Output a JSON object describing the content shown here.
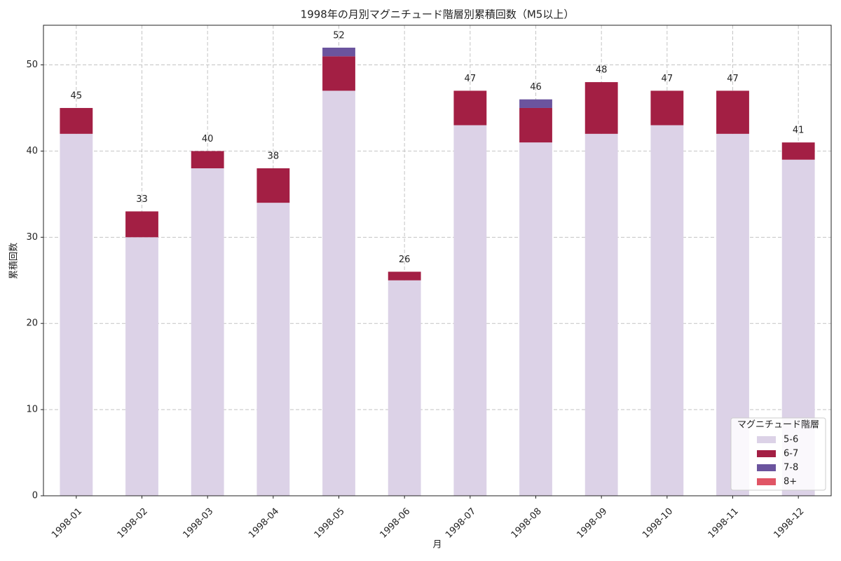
{
  "chart_data": {
    "type": "stacked_bar",
    "title": "1998年の月別マグニチュード階層別累積回数（M5以上）",
    "x_label": "月",
    "y_label": "累積回数",
    "categories": [
      "1998-01",
      "1998-02",
      "1998-03",
      "1998-04",
      "1998-05",
      "1998-06",
      "1998-07",
      "1998-08",
      "1998-09",
      "1998-10",
      "1998-11",
      "1998-12"
    ],
    "series": [
      {
        "name": "5-6",
        "color": "#dcd2e7",
        "values": [
          42,
          30,
          38,
          34,
          47,
          25,
          43,
          41,
          42,
          43,
          42,
          39
        ]
      },
      {
        "name": "6-7",
        "color": "#a31f44",
        "values": [
          3,
          3,
          2,
          4,
          4,
          1,
          4,
          4,
          6,
          4,
          5,
          2
        ]
      },
      {
        "name": "7-8",
        "color": "#6b549e",
        "values": [
          0,
          0,
          0,
          0,
          1,
          0,
          0,
          1,
          0,
          0,
          0,
          0
        ]
      },
      {
        "name": "8+",
        "color": "#e05565",
        "values": [
          0,
          0,
          0,
          0,
          0,
          0,
          0,
          0,
          0,
          0,
          0,
          0
        ]
      }
    ],
    "totals": [
      45,
      33,
      40,
      38,
      52,
      26,
      47,
      46,
      48,
      47,
      47,
      41
    ],
    "ylim": [
      0,
      54.6
    ],
    "yticks": [
      0,
      10,
      20,
      30,
      40,
      50
    ],
    "grid": true,
    "legend_title": "マグニチュード階層",
    "legend_position": "lower right"
  }
}
